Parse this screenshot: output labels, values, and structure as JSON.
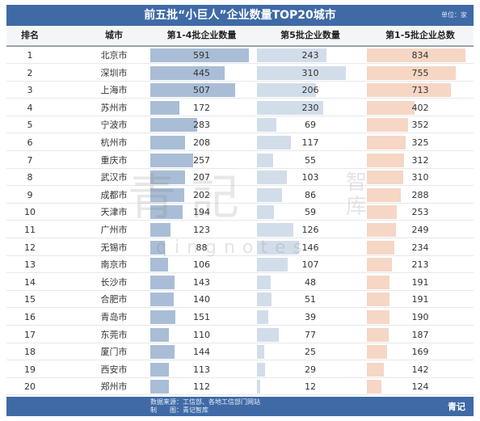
{
  "title": "前五批“小巨人”企业数量TOP20城市",
  "unit": "单位：家",
  "headers": [
    "排名",
    "城市",
    "第1-4批企业数量",
    "第5批企业数量",
    "第1-5批企业总数"
  ],
  "colors": {
    "header_bg": "#3f6aa6",
    "bar_batch1_4": "#a9bdd6",
    "bar_batch5": "#d2ddea",
    "bar_total": "#f6d6c4"
  },
  "watermark": {
    "brand": "青記",
    "side": "智库",
    "latin": "qingnotes"
  },
  "footer": {
    "source": "数据来源：工信部、各地工信部门网站",
    "maker": "制　　图：青记智库",
    "brand": "青记"
  },
  "chart_data": {
    "type": "table",
    "title": "前五批“小巨人”企业数量TOP20城市",
    "unit": "单位：家",
    "columns": [
      "排名",
      "城市",
      "第1-4批企业数量",
      "第5批企业数量",
      "第1-5批企业总数"
    ],
    "rows": [
      {
        "rank": "1",
        "city": "北京市",
        "batch1_4": 591,
        "batch5": 243,
        "total": 834
      },
      {
        "rank": "2",
        "city": "深圳市",
        "batch1_4": 445,
        "batch5": 310,
        "total": 755
      },
      {
        "rank": "3",
        "city": "上海市",
        "batch1_4": 507,
        "batch5": 206,
        "total": 713
      },
      {
        "rank": "4",
        "city": "苏州市",
        "batch1_4": 172,
        "batch5": 230,
        "total": 402
      },
      {
        "rank": "5",
        "city": "宁波市",
        "batch1_4": 283,
        "batch5": 69,
        "total": 352
      },
      {
        "rank": "6",
        "city": "杭州市",
        "batch1_4": 208,
        "batch5": 117,
        "total": 325
      },
      {
        "rank": "7",
        "city": "重庆市",
        "batch1_4": 257,
        "batch5": 55,
        "total": 312
      },
      {
        "rank": "8",
        "city": "武汉市",
        "batch1_4": 207,
        "batch5": 103,
        "total": 310
      },
      {
        "rank": "9",
        "city": "成都市",
        "batch1_4": 202,
        "batch5": 86,
        "total": 288
      },
      {
        "rank": "10",
        "city": "天津市",
        "batch1_4": 194,
        "batch5": 59,
        "total": 253
      },
      {
        "rank": "11",
        "city": "广州市",
        "batch1_4": 123,
        "batch5": 126,
        "total": 249
      },
      {
        "rank": "12",
        "city": "无锡市",
        "batch1_4": 88,
        "batch5": 146,
        "total": 234
      },
      {
        "rank": "13",
        "city": "南京市",
        "batch1_4": 106,
        "batch5": 107,
        "total": 213
      },
      {
        "rank": "14",
        "city": "长沙市",
        "batch1_4": 143,
        "batch5": 48,
        "total": 191
      },
      {
        "rank": "15",
        "city": "合肥市",
        "batch1_4": 140,
        "batch5": 51,
        "total": 191
      },
      {
        "rank": "16",
        "city": "青岛市",
        "batch1_4": 151,
        "batch5": 39,
        "total": 190
      },
      {
        "rank": "17",
        "city": "东莞市",
        "batch1_4": 110,
        "batch5": 77,
        "total": 187
      },
      {
        "rank": "18",
        "city": "厦门市",
        "batch1_4": 144,
        "batch5": 25,
        "total": 169
      },
      {
        "rank": "19",
        "city": "西安市",
        "batch1_4": 113,
        "batch5": 29,
        "total": 142
      },
      {
        "rank": "20",
        "city": "郑州市",
        "batch1_4": 112,
        "batch5": 12,
        "total": 124
      }
    ]
  }
}
